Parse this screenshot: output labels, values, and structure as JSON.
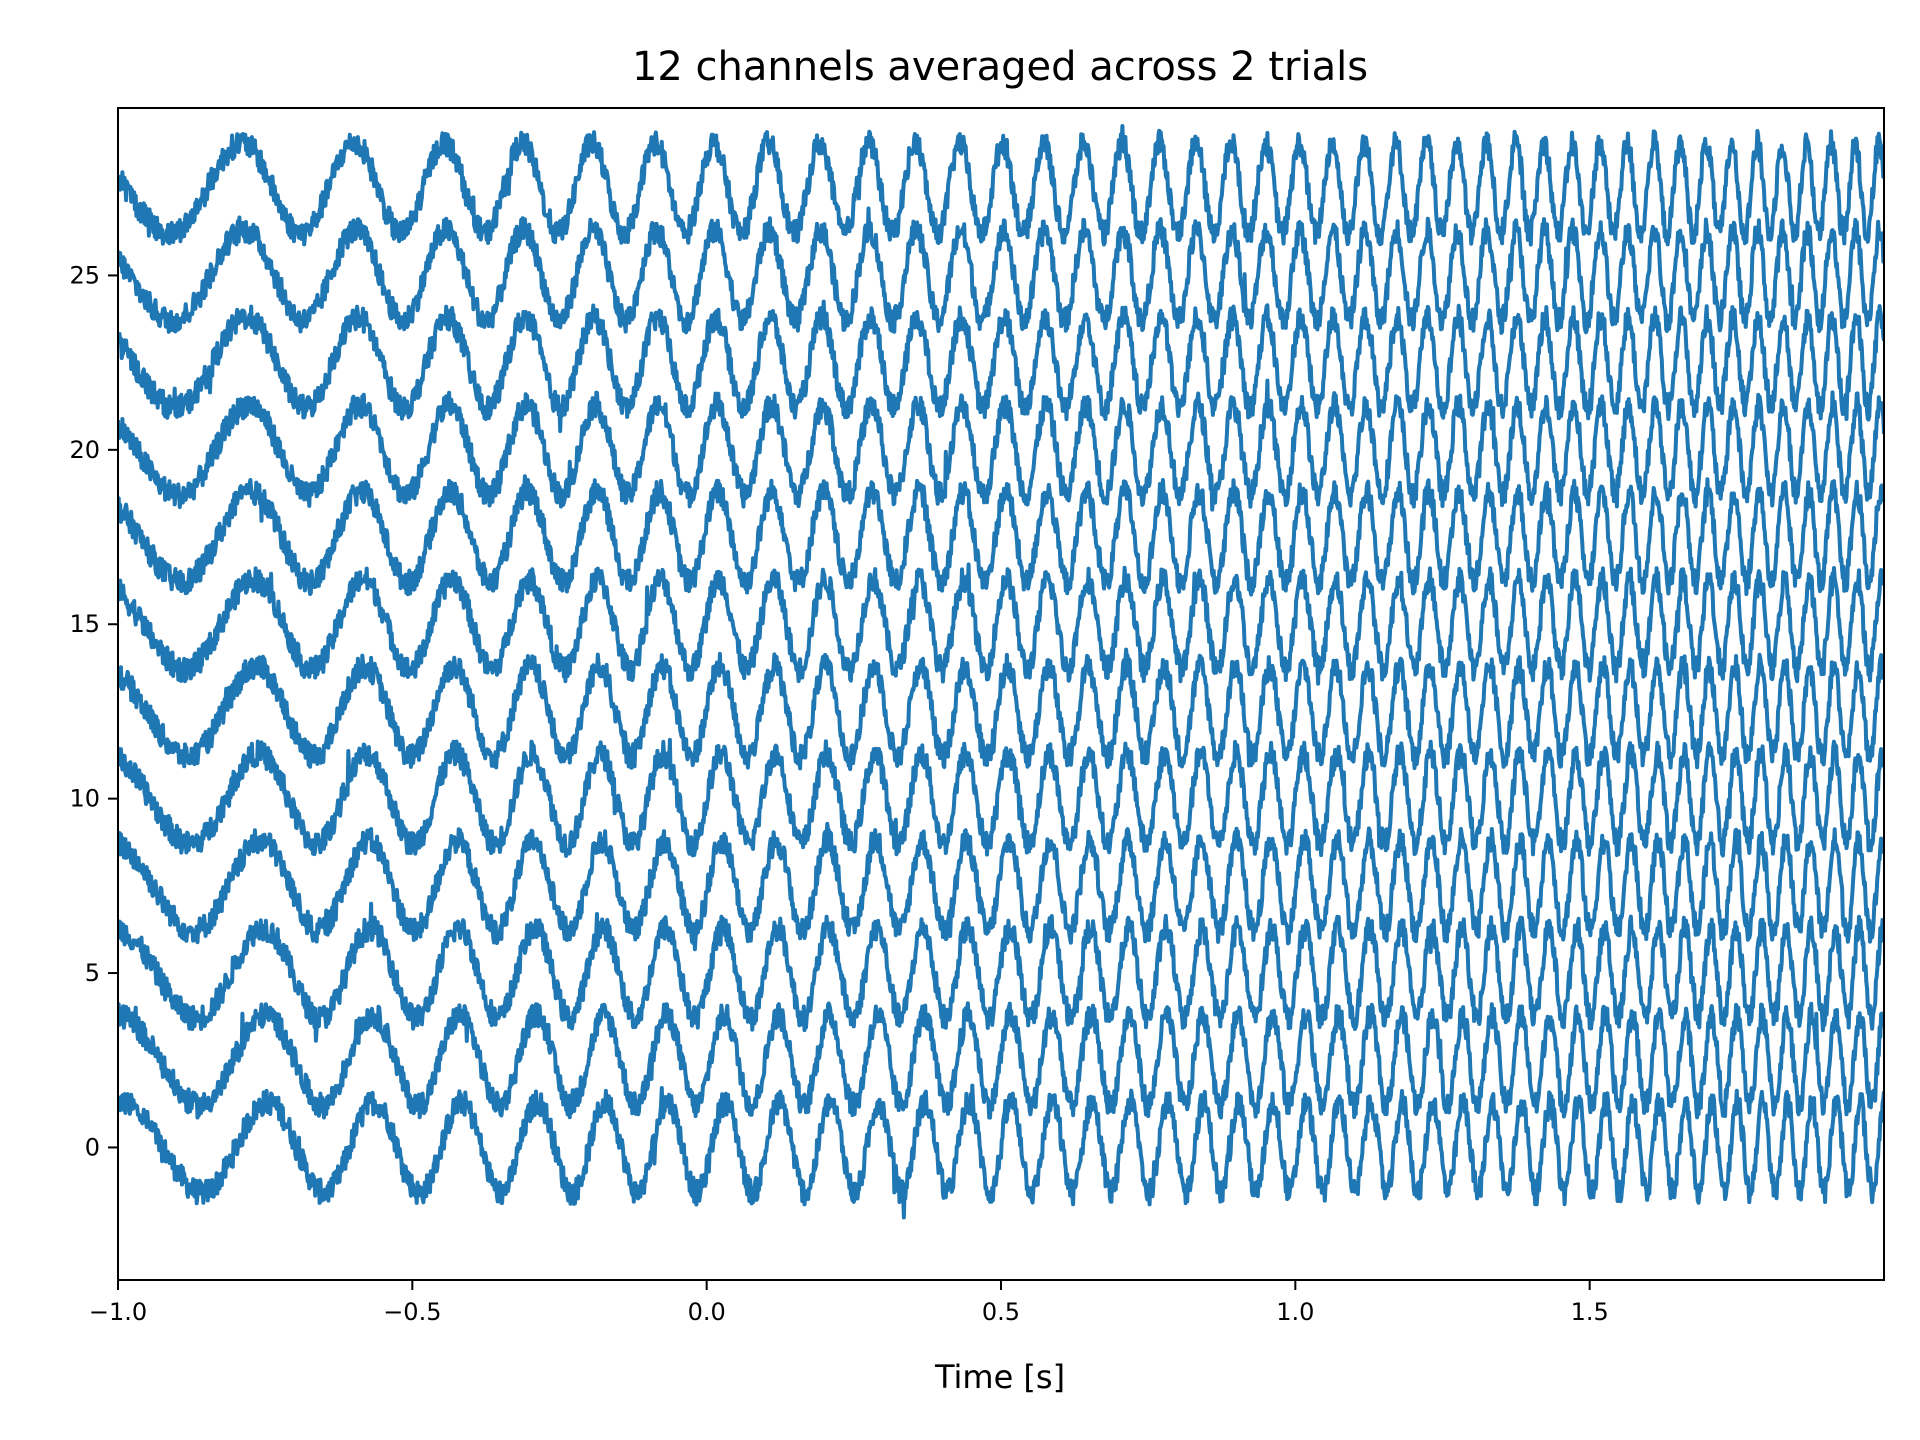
{
  "chart_data": {
    "type": "line",
    "title": "12 channels averaged across 2 trials",
    "xlabel": "Time [s]",
    "ylabel": "",
    "xlim": [
      -1.0,
      2.0
    ],
    "ylim": [
      -3.8,
      29.8
    ],
    "xticks": [
      -1.0,
      -0.5,
      0.0,
      0.5,
      1.0,
      1.5
    ],
    "xtick_labels": [
      "−1.0",
      "−0.5",
      "0.0",
      "0.5",
      "1.0",
      "1.5"
    ],
    "yticks": [
      0,
      5,
      10,
      15,
      20,
      25
    ],
    "ytick_labels": [
      "0",
      "5",
      "10",
      "15",
      "20",
      "25"
    ],
    "grid": false,
    "legend": "none",
    "line_color": "#1f77b4",
    "signal": {
      "description_units": "each channel = offset + sine with frequency rising from ~3 Hz at -1 s to ~25 Hz at 2 s, amplitude ~1.3, plus noise",
      "channel_count": 12,
      "amplitude": 1.3,
      "freq_start_hz": 3,
      "freq_end_hz": 25,
      "noise_amplitude": 0.35
    },
    "series": [
      {
        "offset": 0
      },
      {
        "offset": 2.5
      },
      {
        "offset": 5
      },
      {
        "offset": 7.5
      },
      {
        "offset": 10
      },
      {
        "offset": 12.5
      },
      {
        "offset": 15
      },
      {
        "offset": 17.5
      },
      {
        "offset": 20
      },
      {
        "offset": 22.5
      },
      {
        "offset": 25
      },
      {
        "offset": 27.5
      }
    ]
  }
}
